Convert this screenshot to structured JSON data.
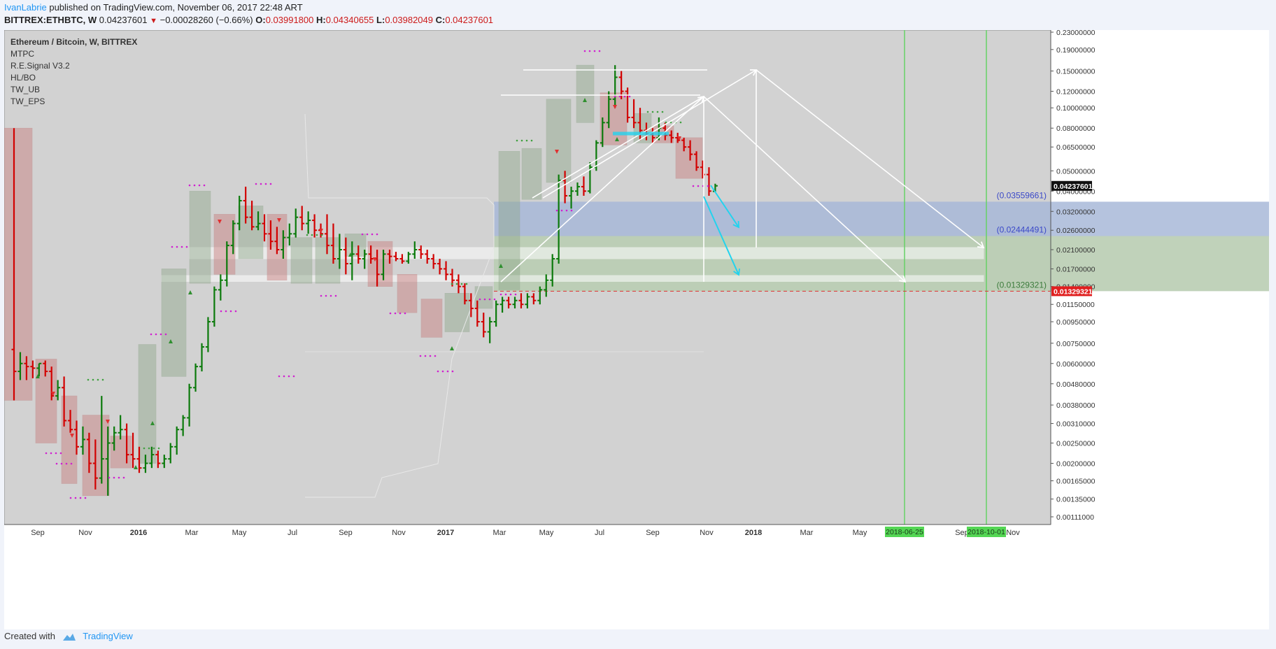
{
  "header": {
    "author": "IvanLabrie",
    "published_text": "published on TradingView.com, November 06, 2017 22:48 ART"
  },
  "ohlc": {
    "symbol": "BITTREX:ETHBTC, W",
    "last": "0.04237601",
    "change": "−0.00028260 (−0.66%)",
    "o_label": "O:",
    "o": "0.03991800",
    "h_label": "H:",
    "h": "0.04340655",
    "l_label": "L:",
    "l": "0.03982049",
    "c_label": "C:",
    "c": "0.04237601"
  },
  "legend": [
    "Ethereum / Bitcoin, W, BITTREX",
    "MTPC",
    "R.E.Signal V3.2",
    "HL/BO",
    "TW_UB",
    "TW_EPS"
  ],
  "footer": {
    "created_with": "Created with",
    "brand": "TradingView"
  },
  "colors": {
    "background": "#d2d2d2",
    "bull": "#0b7a0b",
    "bear": "#d20000",
    "neutral": "#4a3030",
    "projection": "#ffffff",
    "target_arrow": "#22d3ee",
    "blue_zone": "#a8b8d8",
    "green_zone": "#b9cdb2",
    "red_line": "#e03030",
    "vline": "#66d166"
  },
  "chart_data": {
    "type": "candlestick",
    "scale": "log",
    "title": "Ethereum / Bitcoin, W, BITTREX",
    "y_ticks": [
      "0.23000000",
      "0.19000000",
      "0.15000000",
      "0.12000000",
      "0.10000000",
      "0.08000000",
      "0.06500000",
      "0.05000000",
      "0.04000000",
      "0.03200000",
      "0.02600000",
      "0.02100000",
      "0.01700000",
      "0.01400000",
      "0.01150000",
      "0.00950000",
      "0.00750000",
      "0.00600000",
      "0.00480000",
      "0.00380000",
      "0.00310000",
      "0.00250000",
      "0.00200000",
      "0.00165000",
      "0.00135000",
      "0.00111000"
    ],
    "x_ticks": [
      "Sep",
      "Nov",
      "2016",
      "Mar",
      "May",
      "Jul",
      "Sep",
      "Nov",
      "2017",
      "Mar",
      "May",
      "Jul",
      "Sep",
      "Nov",
      "2018",
      "Mar",
      "May",
      "Sep",
      "Nov"
    ],
    "x_ticks_bold": [
      "2016",
      "2017",
      "2018"
    ],
    "time_markers": [
      "2018-06-25",
      "2018-10-01"
    ],
    "price_labels": {
      "last": "0.04237601",
      "stop": "0.01329321"
    },
    "levels": [
      {
        "label": "(0.03559661)",
        "value": 0.03559661
      },
      {
        "label": "(0.02444491)",
        "value": 0.02444491
      },
      {
        "label": "(0.01329321)",
        "value": 0.01329321
      }
    ],
    "candles_approx": [
      [
        0.007,
        0.08,
        0.004,
        0.0055
      ],
      [
        0.0055,
        0.0068,
        0.005,
        0.006
      ],
      [
        0.006,
        0.0065,
        0.005,
        0.0058
      ],
      [
        0.0058,
        0.0062,
        0.0051,
        0.0057
      ],
      [
        0.0057,
        0.006,
        0.0052,
        0.006
      ],
      [
        0.006,
        0.0062,
        0.0052,
        0.0055
      ],
      [
        0.0055,
        0.0058,
        0.004,
        0.0042
      ],
      [
        0.0042,
        0.005,
        0.004,
        0.0046
      ],
      [
        0.0046,
        0.0052,
        0.003,
        0.0032
      ],
      [
        0.0032,
        0.0036,
        0.0028,
        0.0029
      ],
      [
        0.0029,
        0.0032,
        0.0022,
        0.0024
      ],
      [
        0.0024,
        0.003,
        0.0022,
        0.0026
      ],
      [
        0.0026,
        0.0028,
        0.0018,
        0.002
      ],
      [
        0.002,
        0.0026,
        0.0015,
        0.0017
      ],
      [
        0.0017,
        0.0042,
        0.0016,
        0.0021
      ],
      [
        0.0021,
        0.003,
        0.0014,
        0.0025
      ],
      [
        0.0025,
        0.003,
        0.0023,
        0.0028
      ],
      [
        0.0028,
        0.0034,
        0.0026,
        0.0029
      ],
      [
        0.0029,
        0.0031,
        0.002,
        0.0022
      ],
      [
        0.0022,
        0.0028,
        0.0019,
        0.0021
      ],
      [
        0.0021,
        0.0024,
        0.0018,
        0.0019
      ],
      [
        0.0019,
        0.0022,
        0.0018,
        0.002
      ],
      [
        0.002,
        0.0024,
        0.0019,
        0.0022
      ],
      [
        0.0022,
        0.0023,
        0.0019,
        0.002
      ],
      [
        0.002,
        0.0022,
        0.0019,
        0.0021
      ],
      [
        0.0021,
        0.0025,
        0.002,
        0.0024
      ],
      [
        0.0024,
        0.003,
        0.0022,
        0.0029
      ],
      [
        0.0029,
        0.0034,
        0.0027,
        0.0033
      ],
      [
        0.0033,
        0.0048,
        0.003,
        0.0046
      ],
      [
        0.0046,
        0.006,
        0.0044,
        0.0058
      ],
      [
        0.0058,
        0.0075,
        0.0055,
        0.0072
      ],
      [
        0.0072,
        0.01,
        0.0068,
        0.0095
      ],
      [
        0.0095,
        0.014,
        0.009,
        0.0135
      ],
      [
        0.0135,
        0.016,
        0.012,
        0.015
      ],
      [
        0.015,
        0.023,
        0.014,
        0.022
      ],
      [
        0.022,
        0.029,
        0.02,
        0.028
      ],
      [
        0.028,
        0.038,
        0.026,
        0.036
      ],
      [
        0.036,
        0.042,
        0.028,
        0.03
      ],
      [
        0.03,
        0.036,
        0.026,
        0.027
      ],
      [
        0.027,
        0.032,
        0.026,
        0.028
      ],
      [
        0.028,
        0.031,
        0.023,
        0.025
      ],
      [
        0.025,
        0.029,
        0.021,
        0.023
      ],
      [
        0.023,
        0.027,
        0.02,
        0.021
      ],
      [
        0.021,
        0.026,
        0.019,
        0.024
      ],
      [
        0.024,
        0.028,
        0.022,
        0.025
      ],
      [
        0.025,
        0.033,
        0.024,
        0.03
      ],
      [
        0.03,
        0.034,
        0.026,
        0.028
      ],
      [
        0.028,
        0.032,
        0.025,
        0.029
      ],
      [
        0.029,
        0.031,
        0.024,
        0.026
      ],
      [
        0.026,
        0.028,
        0.024,
        0.025
      ],
      [
        0.025,
        0.031,
        0.02,
        0.022
      ],
      [
        0.022,
        0.028,
        0.018,
        0.019
      ],
      [
        0.019,
        0.025,
        0.017,
        0.021
      ],
      [
        0.021,
        0.024,
        0.016,
        0.018
      ],
      [
        0.018,
        0.023,
        0.015,
        0.02
      ],
      [
        0.02,
        0.022,
        0.018,
        0.019
      ],
      [
        0.019,
        0.021,
        0.017,
        0.02
      ],
      [
        0.02,
        0.022,
        0.018,
        0.019
      ],
      [
        0.019,
        0.021,
        0.014,
        0.016
      ],
      [
        0.016,
        0.021,
        0.015,
        0.02
      ],
      [
        0.02,
        0.021,
        0.018,
        0.0195
      ],
      [
        0.0195,
        0.0205,
        0.0185,
        0.019
      ],
      [
        0.019,
        0.02,
        0.018,
        0.0185
      ],
      [
        0.0185,
        0.0205,
        0.018,
        0.02
      ],
      [
        0.02,
        0.023,
        0.019,
        0.021
      ],
      [
        0.021,
        0.022,
        0.019,
        0.02
      ],
      [
        0.02,
        0.021,
        0.018,
        0.019
      ],
      [
        0.019,
        0.02,
        0.017,
        0.018
      ],
      [
        0.018,
        0.019,
        0.016,
        0.017
      ],
      [
        0.017,
        0.0185,
        0.015,
        0.016
      ],
      [
        0.016,
        0.017,
        0.014,
        0.015
      ],
      [
        0.015,
        0.016,
        0.013,
        0.014
      ],
      [
        0.014,
        0.0145,
        0.0115,
        0.012
      ],
      [
        0.012,
        0.013,
        0.01,
        0.011
      ],
      [
        0.011,
        0.012,
        0.009,
        0.0095
      ],
      [
        0.0095,
        0.0105,
        0.008,
        0.0085
      ],
      [
        0.0085,
        0.01,
        0.0075,
        0.0095
      ],
      [
        0.0095,
        0.012,
        0.009,
        0.0115
      ],
      [
        0.0115,
        0.0125,
        0.0105,
        0.012
      ],
      [
        0.012,
        0.0125,
        0.011,
        0.0115
      ],
      [
        0.0115,
        0.0125,
        0.011,
        0.012
      ],
      [
        0.012,
        0.013,
        0.011,
        0.0115
      ],
      [
        0.0115,
        0.013,
        0.011,
        0.0125
      ],
      [
        0.0125,
        0.013,
        0.0115,
        0.012
      ],
      [
        0.012,
        0.014,
        0.0115,
        0.0135
      ],
      [
        0.0135,
        0.016,
        0.0125,
        0.015
      ],
      [
        0.015,
        0.02,
        0.014,
        0.019
      ],
      [
        0.019,
        0.048,
        0.018,
        0.045
      ],
      [
        0.045,
        0.05,
        0.035,
        0.038
      ],
      [
        0.038,
        0.042,
        0.033,
        0.04
      ],
      [
        0.04,
        0.044,
        0.038,
        0.042
      ],
      [
        0.042,
        0.047,
        0.038,
        0.04
      ],
      [
        0.04,
        0.055,
        0.039,
        0.052
      ],
      [
        0.052,
        0.07,
        0.05,
        0.068
      ],
      [
        0.068,
        0.09,
        0.065,
        0.085
      ],
      [
        0.085,
        0.12,
        0.08,
        0.11
      ],
      [
        0.11,
        0.16,
        0.1,
        0.14
      ],
      [
        0.14,
        0.15,
        0.11,
        0.12
      ],
      [
        0.12,
        0.125,
        0.085,
        0.09
      ],
      [
        0.09,
        0.11,
        0.08,
        0.085
      ],
      [
        0.085,
        0.1,
        0.07,
        0.078
      ],
      [
        0.078,
        0.085,
        0.07,
        0.075
      ],
      [
        0.075,
        0.08,
        0.068,
        0.072
      ],
      [
        0.072,
        0.09,
        0.07,
        0.08
      ],
      [
        0.08,
        0.085,
        0.07,
        0.074
      ],
      [
        0.074,
        0.078,
        0.068,
        0.072
      ],
      [
        0.072,
        0.076,
        0.068,
        0.07
      ],
      [
        0.07,
        0.072,
        0.062,
        0.065
      ],
      [
        0.065,
        0.07,
        0.056,
        0.06
      ],
      [
        0.06,
        0.062,
        0.05,
        0.052
      ],
      [
        0.052,
        0.056,
        0.046,
        0.048
      ],
      [
        0.048,
        0.052,
        0.038,
        0.04
      ],
      [
        0.0399,
        0.0434,
        0.0398,
        0.0424
      ]
    ]
  }
}
